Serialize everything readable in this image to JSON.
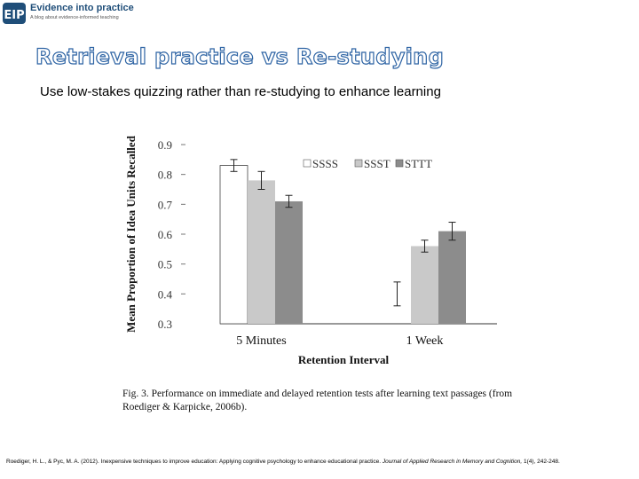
{
  "brand": {
    "logo_text": "EIP",
    "title": "Evidence into practice",
    "tagline": "A blog about evidence-informed teaching",
    "logo_color": "#1f4e79"
  },
  "slide": {
    "title": "Retrieval practice vs Re-studying",
    "subtitle": "Use low-stakes quizzing rather than re-studying to enhance learning"
  },
  "chart_data": {
    "type": "bar",
    "title": "",
    "xlabel": "Retention Interval",
    "ylabel": "Mean Proportion of Idea Units Recalled",
    "categories": [
      "5 Minutes",
      "1 Week"
    ],
    "ylim": [
      0.3,
      0.9
    ],
    "yticks": [
      "0.9",
      "0.8",
      "0.7",
      "0.6",
      "0.5",
      "0.4",
      "0.3"
    ],
    "legend_position": "top-right",
    "series": [
      {
        "name": "SSSS",
        "values": [
          0.83,
          0.4
        ],
        "errors": [
          0.02,
          0.04
        ],
        "color": "#ffffff"
      },
      {
        "name": "SSST",
        "values": [
          0.78,
          0.56
        ],
        "errors": [
          0.03,
          0.02
        ],
        "color": "#c9c9c9"
      },
      {
        "name": "STTT",
        "values": [
          0.71,
          0.61
        ],
        "errors": [
          0.02,
          0.03
        ],
        "color": "#8c8c8c"
      }
    ]
  },
  "caption": {
    "label": "Fig. 3.",
    "text": "Performance on immediate and delayed retention tests after learning text passages (from Roediger & Karpicke, 2006b)."
  },
  "citation": {
    "text": "Roediger, H. L., & Pyc, M. A. (2012). Inexpensive techniques to improve education: Applying cognitive psychology to enhance educational practice.",
    "journal": "Journal of Applied Research in Memory and Cognition,",
    "rest": "1(4), 242-248."
  }
}
